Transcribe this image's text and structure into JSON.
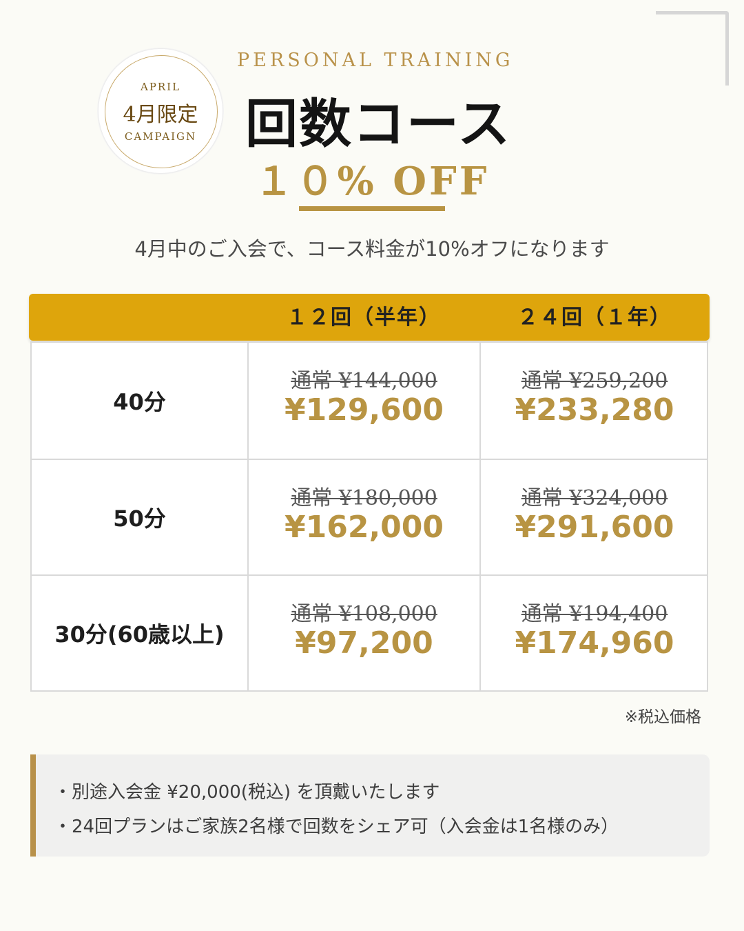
{
  "badge": {
    "top": "APRIL",
    "main": "4月限定",
    "bottom": "CAMPAIGN"
  },
  "header": {
    "eyebrow": "PERSONAL TRAINING",
    "title": "回数コース",
    "discount": "１０% OFF"
  },
  "subtitle": "4月中のご入会で、コース料金が10%オフになります",
  "table": {
    "columns": [
      "１２回（半年）",
      "２４回（１年）"
    ],
    "rows": [
      {
        "label": "40分",
        "plan12": {
          "regular": "通常 ¥144,000",
          "sale": "¥129,600"
        },
        "plan24": {
          "regular": "通常 ¥259,200",
          "sale": "¥233,280"
        }
      },
      {
        "label": "50分",
        "plan12": {
          "regular": "通常 ¥180,000",
          "sale": "¥162,000"
        },
        "plan24": {
          "regular": "通常 ¥324,000",
          "sale": "¥291,600"
        }
      },
      {
        "label": "30分(60歳以上)",
        "plan12": {
          "regular": "通常 ¥108,000",
          "sale": "¥97,200"
        },
        "plan24": {
          "regular": "通常 ¥194,400",
          "sale": "¥174,960"
        }
      }
    ]
  },
  "tax_note": "※税込価格",
  "notes": [
    "・別途入会金 ¥20,000(税込) を頂戴いたします",
    "・24回プランはご家族2名様で回数をシェア可（入会金は1名様のみ）"
  ],
  "colors": {
    "accent_gold": "#b89443",
    "header_bar": "#dea50c",
    "background": "#fbfbf6"
  }
}
